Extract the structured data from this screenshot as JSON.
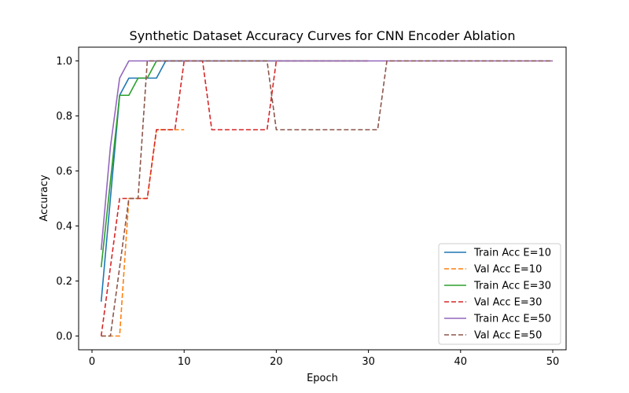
{
  "chart_data": {
    "type": "line",
    "title": "Synthetic Dataset Accuracy Curves for CNN Encoder Ablation",
    "xlabel": "Epoch",
    "ylabel": "Accuracy",
    "xlim": [
      0,
      50
    ],
    "ylim": [
      0,
      1.0
    ],
    "xticks": [
      0,
      10,
      20,
      30,
      40,
      50
    ],
    "yticks": [
      0.0,
      0.2,
      0.4,
      0.6,
      0.8,
      1.0
    ],
    "ytick_labels": [
      "0.0",
      "0.2",
      "0.4",
      "0.6",
      "0.8",
      "1.0"
    ],
    "grid": false,
    "legend_position": "bottom-right",
    "series": [
      {
        "name": "Train Acc E=10",
        "color": "#1f77b4",
        "dash": "solid",
        "x": [
          1,
          2,
          3,
          4,
          5,
          6,
          7,
          8,
          9,
          10
        ],
        "y": [
          0.125,
          0.5,
          0.875,
          0.9375,
          0.9375,
          0.9375,
          0.9375,
          1.0,
          1.0,
          1.0
        ]
      },
      {
        "name": "Val Acc E=10",
        "color": "#ff7f0e",
        "dash": "dashed",
        "x": [
          1,
          2,
          3,
          4,
          5,
          6,
          7,
          8,
          9,
          10
        ],
        "y": [
          0.0,
          0.0,
          0.0,
          0.5,
          0.5,
          0.5,
          0.75,
          0.75,
          0.75,
          0.75
        ]
      },
      {
        "name": "Train Acc E=30",
        "color": "#2ca02c",
        "dash": "solid",
        "x": [
          1,
          2,
          3,
          4,
          5,
          6,
          7,
          8,
          9,
          10,
          11,
          12,
          13,
          14,
          15,
          16,
          17,
          18,
          19,
          20,
          21,
          22,
          23,
          24,
          25,
          26,
          27,
          28,
          29,
          30
        ],
        "y": [
          0.25,
          0.5625,
          0.875,
          0.875,
          0.9375,
          0.9375,
          1.0,
          1.0,
          1.0,
          1.0,
          1.0,
          1.0,
          1.0,
          1.0,
          1.0,
          1.0,
          1.0,
          1.0,
          1.0,
          1.0,
          1.0,
          1.0,
          1.0,
          1.0,
          1.0,
          1.0,
          1.0,
          1.0,
          1.0,
          1.0
        ]
      },
      {
        "name": "Val Acc E=30",
        "color": "#d62728",
        "dash": "dashed",
        "x": [
          1,
          2,
          3,
          4,
          5,
          6,
          7,
          8,
          9,
          10,
          11,
          12,
          13,
          14,
          15,
          16,
          17,
          18,
          19,
          20,
          21,
          22,
          23,
          24,
          25,
          26,
          27,
          28,
          29,
          30
        ],
        "y": [
          0.0,
          0.25,
          0.5,
          0.5,
          0.5,
          0.5,
          0.75,
          0.75,
          0.75,
          1.0,
          1.0,
          1.0,
          0.75,
          0.75,
          0.75,
          0.75,
          0.75,
          0.75,
          0.75,
          1.0,
          1.0,
          1.0,
          1.0,
          1.0,
          1.0,
          1.0,
          1.0,
          1.0,
          1.0,
          1.0
        ]
      },
      {
        "name": "Train Acc E=50",
        "color": "#9467bd",
        "dash": "solid",
        "x": [
          1,
          2,
          3,
          4,
          5,
          6,
          7,
          8,
          9,
          10,
          11,
          12,
          13,
          14,
          15,
          16,
          17,
          18,
          19,
          20,
          21,
          22,
          23,
          24,
          25,
          26,
          27,
          28,
          29,
          30,
          31,
          32,
          33,
          34,
          35,
          36,
          37,
          38,
          39,
          40,
          41,
          42,
          43,
          44,
          45,
          46,
          47,
          48,
          49,
          50
        ],
        "y": [
          0.3125,
          0.6875,
          0.9375,
          1.0,
          1.0,
          1.0,
          1.0,
          1.0,
          1.0,
          1.0,
          1.0,
          1.0,
          1.0,
          1.0,
          1.0,
          1.0,
          1.0,
          1.0,
          1.0,
          1.0,
          1.0,
          1.0,
          1.0,
          1.0,
          1.0,
          1.0,
          1.0,
          1.0,
          1.0,
          1.0,
          1.0,
          1.0,
          1.0,
          1.0,
          1.0,
          1.0,
          1.0,
          1.0,
          1.0,
          1.0,
          1.0,
          1.0,
          1.0,
          1.0,
          1.0,
          1.0,
          1.0,
          1.0,
          1.0,
          1.0
        ]
      },
      {
        "name": "Val Acc E=50",
        "color": "#8c564b",
        "dash": "dashed",
        "x": [
          1,
          2,
          3,
          4,
          5,
          6,
          7,
          8,
          9,
          10,
          11,
          12,
          13,
          14,
          15,
          16,
          17,
          18,
          19,
          20,
          21,
          22,
          23,
          24,
          25,
          26,
          27,
          28,
          29,
          30,
          31,
          32,
          33,
          34,
          35,
          36,
          37,
          38,
          39,
          40,
          41,
          42,
          43,
          44,
          45,
          46,
          47,
          48,
          49,
          50
        ],
        "y": [
          0.0,
          0.0,
          0.25,
          0.5,
          0.5,
          1.0,
          1.0,
          1.0,
          1.0,
          1.0,
          1.0,
          1.0,
          1.0,
          1.0,
          1.0,
          1.0,
          1.0,
          1.0,
          1.0,
          0.75,
          0.75,
          0.75,
          0.75,
          0.75,
          0.75,
          0.75,
          0.75,
          0.75,
          0.75,
          0.75,
          0.75,
          1.0,
          1.0,
          1.0,
          1.0,
          1.0,
          1.0,
          1.0,
          1.0,
          1.0,
          1.0,
          1.0,
          1.0,
          1.0,
          1.0,
          1.0,
          1.0,
          1.0,
          1.0,
          1.0
        ]
      }
    ]
  }
}
